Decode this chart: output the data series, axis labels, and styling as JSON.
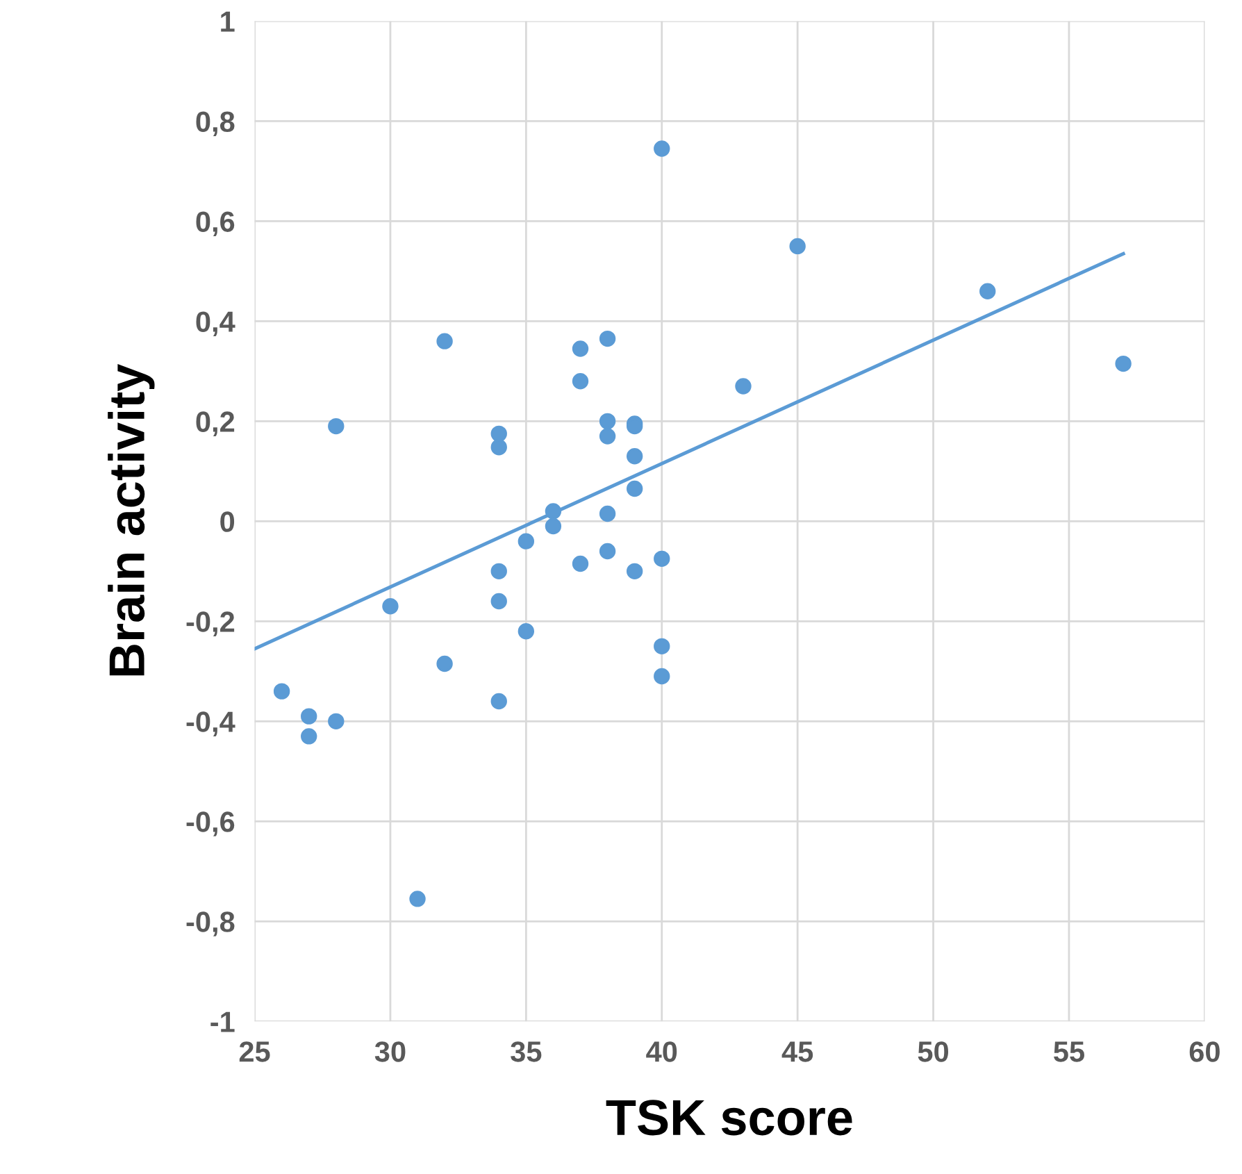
{
  "chart_data": {
    "type": "scatter",
    "xlabel": "TSK score",
    "ylabel": "Brain activity",
    "series": [
      {
        "color": "#5b9bd5",
        "marker": "circle",
        "x": [
          26,
          27,
          27,
          28,
          28,
          30,
          31,
          32,
          32,
          34,
          34,
          34,
          34,
          34,
          35,
          35,
          36,
          36,
          37,
          37,
          37,
          38,
          38,
          38,
          38,
          38,
          39,
          39,
          39,
          39,
          39,
          40,
          40,
          40,
          40,
          43,
          45,
          52,
          57
        ],
        "values": [
          -0.34,
          -0.39,
          -0.43,
          -0.4,
          0.19,
          -0.17,
          -0.755,
          0.36,
          -0.285,
          0.175,
          0.148,
          -0.1,
          -0.16,
          -0.36,
          -0.04,
          -0.22,
          0.02,
          -0.01,
          0.345,
          0.28,
          -0.085,
          0.365,
          0.2,
          0.17,
          0.015,
          -0.06,
          0.195,
          0.19,
          0.13,
          0.065,
          -0.1,
          0.745,
          -0.075,
          -0.25,
          -0.31,
          0.27,
          0.55,
          0.46,
          0.315
        ]
      },
      {
        "type": "line",
        "color": "#5b9bd5",
        "marker": "none",
        "x": [
          25,
          57
        ],
        "values": [
          -0.255,
          0.535
        ]
      }
    ],
    "xlim": [
      25,
      60
    ],
    "xticks": [
      25,
      30,
      35,
      40,
      45,
      50,
      55,
      60
    ],
    "ylim": [
      -1,
      1
    ],
    "yticks": [
      {
        "value": -1,
        "label": "-1"
      },
      {
        "value": -0.8,
        "label": "-0,8"
      },
      {
        "value": -0.6,
        "label": "-0,6"
      },
      {
        "value": -0.4,
        "label": "-0,4"
      },
      {
        "value": -0.2,
        "label": "-0,2"
      },
      {
        "value": 0,
        "label": "0"
      },
      {
        "value": 0.2,
        "label": "0,2"
      },
      {
        "value": 0.4,
        "label": "0,4"
      },
      {
        "value": 0.6,
        "label": "0,6"
      },
      {
        "value": 0.8,
        "label": "0,8"
      },
      {
        "value": 1,
        "label": "1"
      }
    ],
    "grid": true,
    "legend": false
  }
}
